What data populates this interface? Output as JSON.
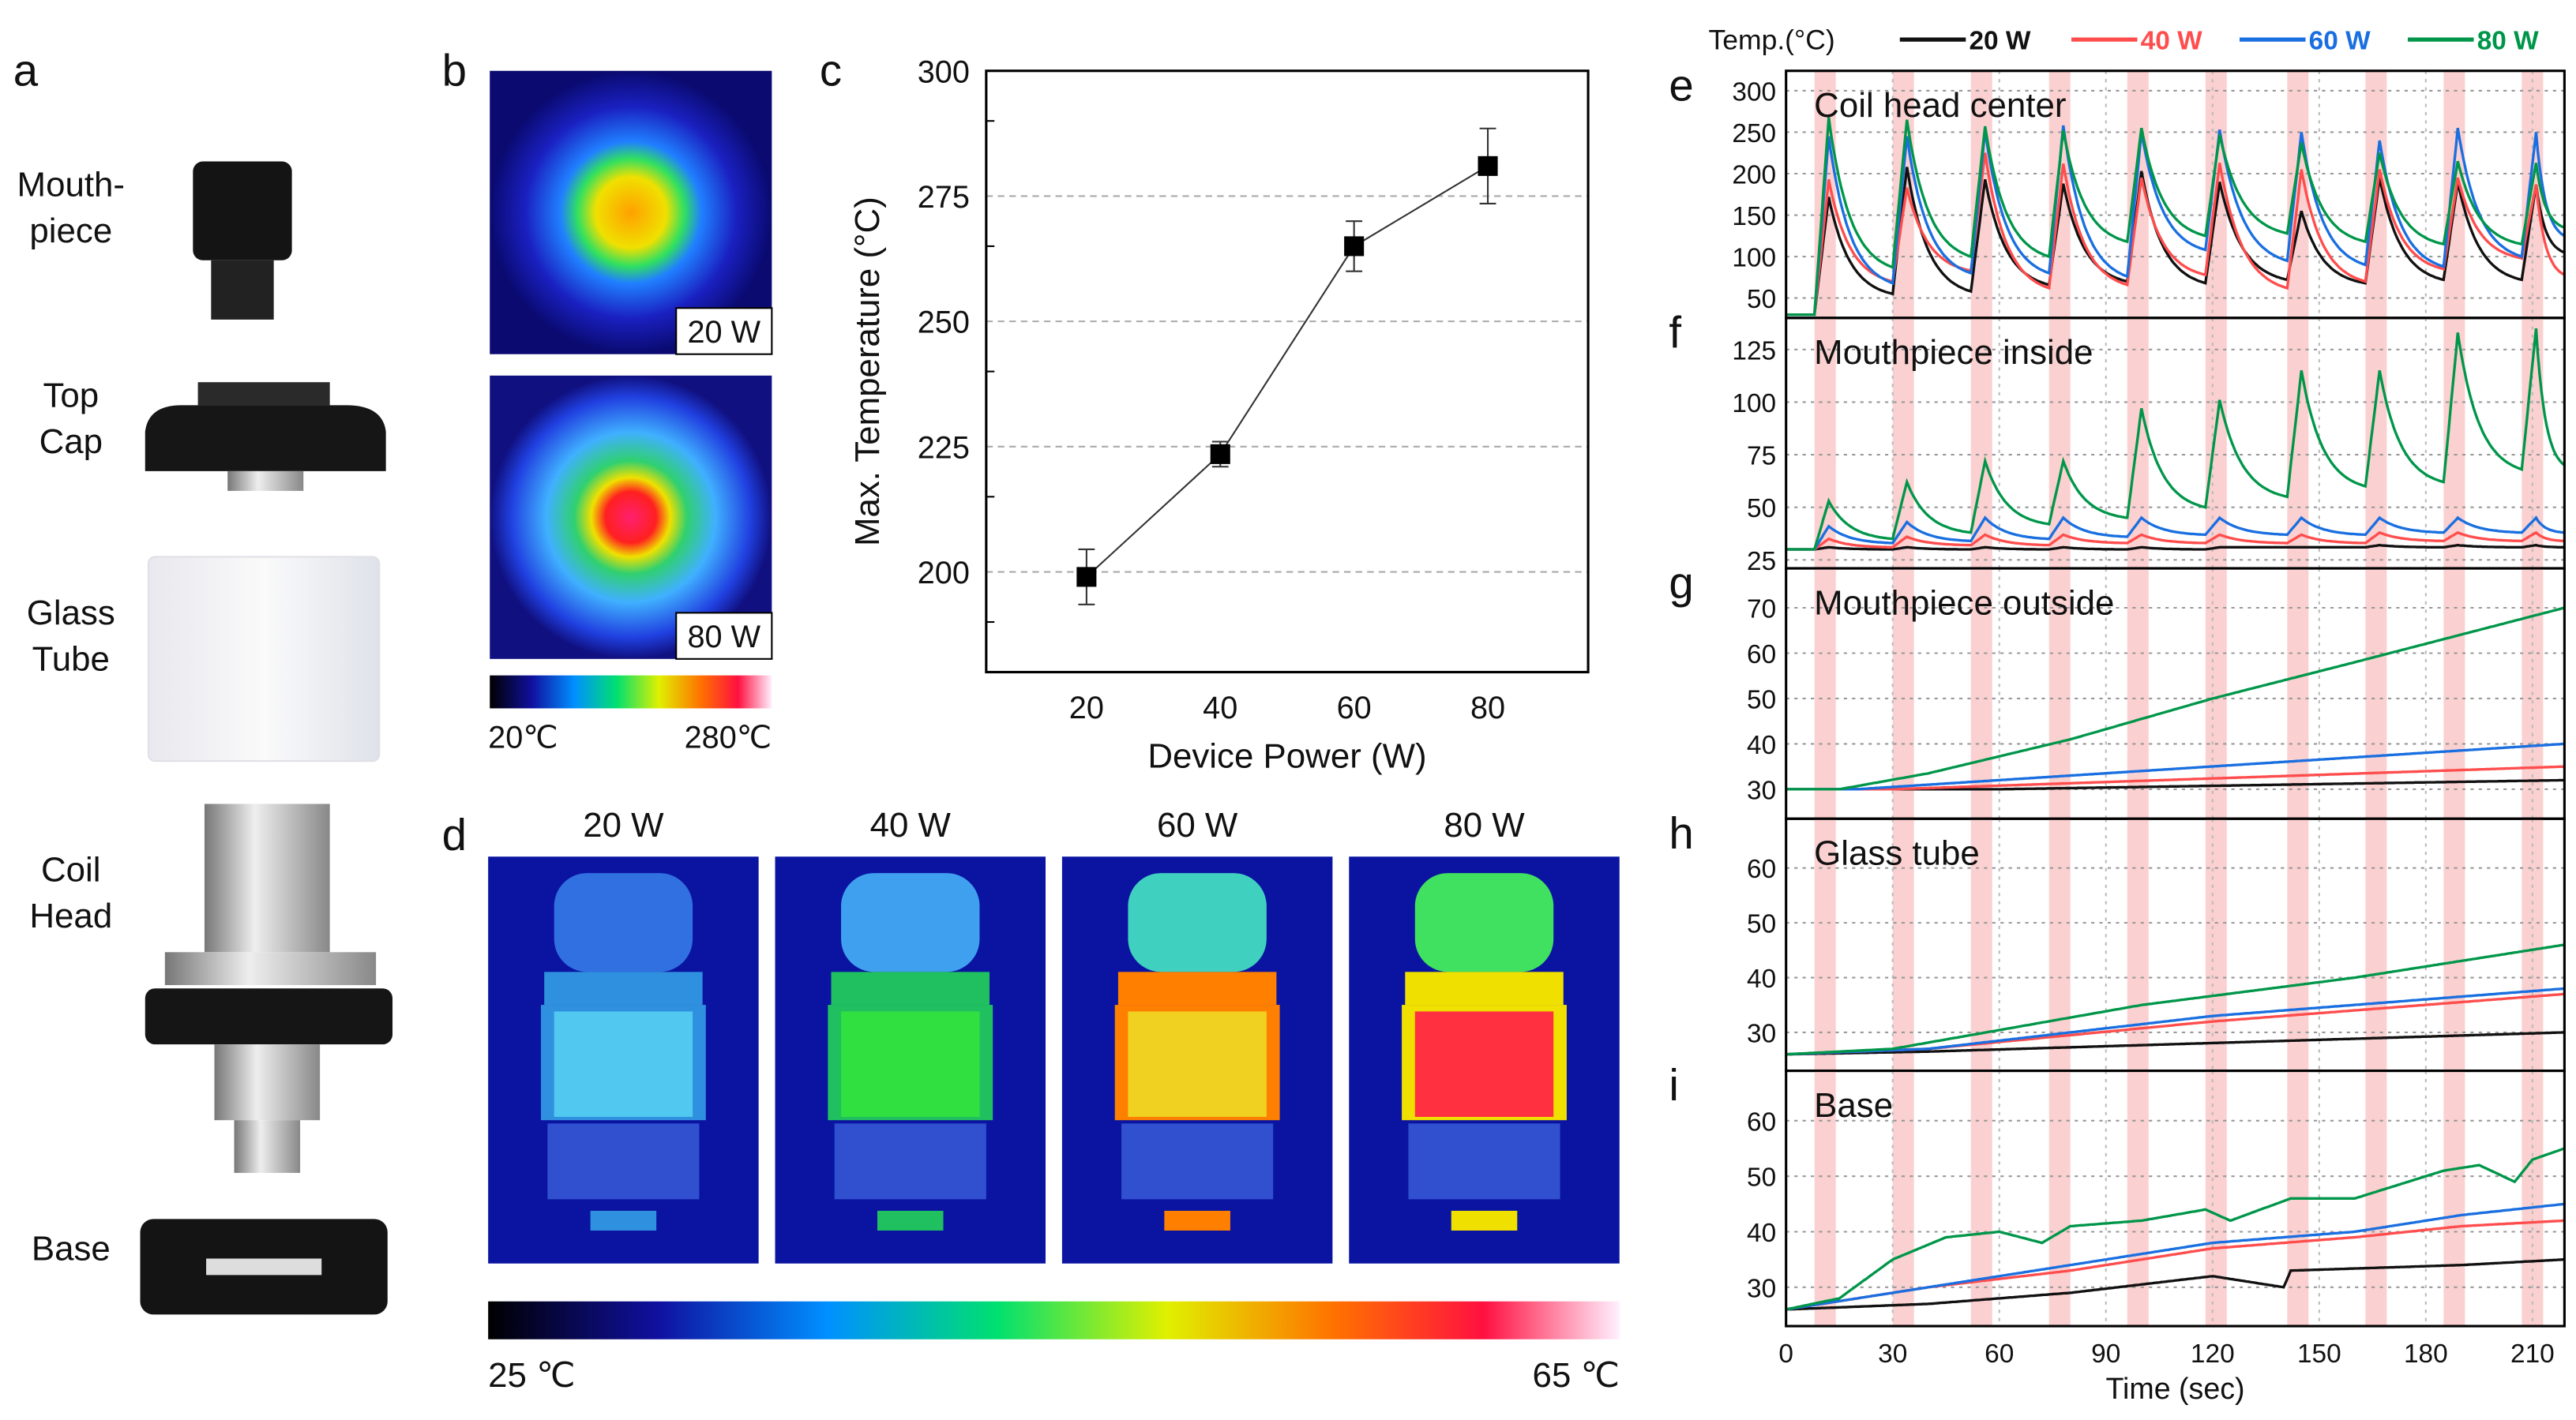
{
  "panel_labels": {
    "a": "a",
    "b": "b",
    "c": "c",
    "d": "d",
    "e": "e",
    "f": "f",
    "g": "g",
    "h": "h",
    "i": "i"
  },
  "panel_a": {
    "components": [
      {
        "lines": [
          "Mouth-",
          "piece"
        ]
      },
      {
        "lines": [
          "Top",
          "Cap"
        ]
      },
      {
        "lines": [
          "Glass",
          "Tube"
        ]
      },
      {
        "lines": [
          "Coil",
          "Head"
        ]
      },
      {
        "lines": [
          "Base"
        ]
      }
    ]
  },
  "panel_b": {
    "images": [
      {
        "label": "20 W"
      },
      {
        "label": "80 W"
      }
    ],
    "colorbar": {
      "min": "20℃",
      "max": "280℃"
    }
  },
  "panel_d": {
    "images": [
      {
        "label": "20 W"
      },
      {
        "label": "40 W"
      },
      {
        "label": "60 W"
      },
      {
        "label": "80 W"
      }
    ],
    "colorbar": {
      "min": "25 ℃",
      "max": "65 ℃"
    }
  },
  "legend": {
    "title": "Temp.(°C)",
    "series": [
      {
        "name": "20 W",
        "color": "#111111"
      },
      {
        "name": "40 W",
        "color": "#ff4d4d"
      },
      {
        "name": "60 W",
        "color": "#1a6fe0"
      },
      {
        "name": "80 W",
        "color": "#00964a"
      }
    ]
  },
  "chart_data": [
    {
      "id": "c",
      "type": "line",
      "xlabel": "Device Power (W)",
      "ylabel": "Max. Temperature (°C)",
      "x": [
        20,
        40,
        60,
        80
      ],
      "y": [
        199,
        223.5,
        265,
        281
      ],
      "error": [
        5.5,
        2.5,
        5,
        7.5
      ],
      "xlim": [
        5,
        95
      ],
      "ylim": [
        180,
        300
      ],
      "xticks": [
        20,
        40,
        60,
        80
      ],
      "yticks": [
        200,
        225,
        250,
        275,
        300
      ],
      "grid": "y-dashed"
    },
    {
      "id": "e",
      "type": "line",
      "title": "Coil head center",
      "xlim": [
        0,
        219
      ],
      "ylim": [
        26,
        324
      ],
      "yticks": [
        50,
        100,
        150,
        200,
        250,
        300
      ],
      "puff_starts": [
        8,
        30,
        52,
        74,
        96,
        118,
        141,
        163,
        185,
        207
      ],
      "puff_duration": 6,
      "baseline": 30,
      "series": [
        {
          "name": "20 W",
          "peaks": [
            172,
            208,
            193,
            188,
            203,
            190,
            155,
            195,
            190,
            187
          ],
          "troughs": [
            55,
            58,
            66,
            70,
            68,
            72,
            68,
            72,
            72,
            105
          ]
        },
        {
          "name": "40 W",
          "peaks": [
            193,
            183,
            225,
            212,
            195,
            213,
            205,
            205,
            195,
            187
          ],
          "troughs": [
            70,
            83,
            62,
            66,
            78,
            62,
            70,
            85,
            98,
            78
          ]
        },
        {
          "name": "60 W",
          "peaks": [
            245,
            245,
            252,
            258,
            250,
            253,
            250,
            240,
            255,
            250
          ],
          "troughs": [
            68,
            80,
            80,
            76,
            108,
            95,
            90,
            88,
            100,
            125
          ]
        },
        {
          "name": "80 W",
          "peaks": [
            268,
            265,
            257,
            252,
            255,
            247,
            237,
            225,
            215,
            213
          ],
          "troughs": [
            87,
            100,
            100,
            118,
            125,
            128,
            118,
            115,
            115,
            135
          ]
        }
      ]
    },
    {
      "id": "f",
      "type": "line",
      "title": "Mouthpiece inside",
      "xlim": [
        0,
        219
      ],
      "ylim": [
        21,
        140
      ],
      "yticks": [
        25,
        50,
        75,
        100,
        125
      ],
      "baseline": 30,
      "series": [
        {
          "name": "20 W",
          "peaks": [
            31,
            31,
            31,
            31,
            31,
            31,
            31,
            32,
            32,
            32
          ],
          "troughs": [
            30,
            30,
            30,
            30,
            30,
            31,
            31,
            31,
            31,
            31
          ]
        },
        {
          "name": "40 W",
          "peaks": [
            35,
            36,
            37,
            37,
            37,
            37,
            37,
            38,
            38,
            38
          ],
          "troughs": [
            31,
            32,
            32,
            33,
            33,
            33,
            33,
            34,
            34,
            34
          ]
        },
        {
          "name": "60 W",
          "peaks": [
            41,
            43,
            45,
            45,
            45,
            45,
            45,
            45,
            45,
            45
          ],
          "troughs": [
            33,
            34,
            35,
            36,
            37,
            37,
            37,
            38,
            38,
            38
          ]
        },
        {
          "name": "80 W",
          "peaks": [
            53,
            62,
            72,
            72,
            97,
            101,
            115,
            115,
            133,
            135
          ],
          "troughs": [
            35,
            38,
            42,
            45,
            50,
            55,
            60,
            62,
            68,
            70
          ]
        }
      ]
    },
    {
      "id": "g",
      "type": "line",
      "title": "Mouthpiece outside",
      "xlim": [
        0,
        219
      ],
      "ylim": [
        23.5,
        78.7
      ],
      "yticks": [
        30,
        40,
        50,
        60,
        70
      ],
      "series": [
        {
          "name": "20 W",
          "points": [
            [
              0,
              30
            ],
            [
              60,
              30
            ],
            [
              219,
              32
            ]
          ]
        },
        {
          "name": "40 W",
          "points": [
            [
              0,
              30
            ],
            [
              30,
              30
            ],
            [
              219,
              35
            ]
          ]
        },
        {
          "name": "60 W",
          "points": [
            [
              0,
              30
            ],
            [
              20,
              30
            ],
            [
              219,
              40
            ]
          ]
        },
        {
          "name": "80 W",
          "points": [
            [
              0,
              30
            ],
            [
              15,
              30
            ],
            [
              40,
              33.5
            ],
            [
              80,
              41
            ],
            [
              120,
              50
            ],
            [
              160,
              58
            ],
            [
              219,
              70
            ]
          ]
        }
      ]
    },
    {
      "id": "h",
      "type": "line",
      "title": "Glass tube",
      "xlim": [
        0,
        219
      ],
      "ylim": [
        23,
        69
      ],
      "yticks": [
        30,
        40,
        50,
        60
      ],
      "series": [
        {
          "name": "20 W",
          "points": [
            [
              0,
              26
            ],
            [
              40,
              26.5
            ],
            [
              219,
              30
            ]
          ]
        },
        {
          "name": "40 W",
          "points": [
            [
              0,
              26
            ],
            [
              40,
              27
            ],
            [
              120,
              32
            ],
            [
              219,
              37
            ]
          ]
        },
        {
          "name": "60 W",
          "points": [
            [
              0,
              26
            ],
            [
              40,
              27
            ],
            [
              120,
              33
            ],
            [
              219,
              38
            ]
          ]
        },
        {
          "name": "80 W",
          "points": [
            [
              0,
              26
            ],
            [
              30,
              27
            ],
            [
              100,
              35
            ],
            [
              160,
              40
            ],
            [
              219,
              46
            ]
          ]
        }
      ]
    },
    {
      "id": "i",
      "type": "line",
      "title": "Base",
      "xlim": [
        0,
        219
      ],
      "ylim": [
        23,
        69
      ],
      "yticks": [
        30,
        40,
        50,
        60
      ],
      "xticks": [
        0,
        30,
        60,
        90,
        120,
        150,
        180,
        210
      ],
      "xlabel": "Time (sec)",
      "series": [
        {
          "name": "20 W",
          "points": [
            [
              0,
              26
            ],
            [
              40,
              27
            ],
            [
              80,
              29
            ],
            [
              120,
              32
            ],
            [
              140,
              30
            ],
            [
              142,
              33
            ],
            [
              190,
              34
            ],
            [
              219,
              35
            ]
          ]
        },
        {
          "name": "40 W",
          "points": [
            [
              0,
              26
            ],
            [
              20,
              28
            ],
            [
              40,
              30
            ],
            [
              80,
              33
            ],
            [
              120,
              37
            ],
            [
              160,
              39
            ],
            [
              190,
              41
            ],
            [
              219,
              42
            ]
          ]
        },
        {
          "name": "60 W",
          "points": [
            [
              0,
              26
            ],
            [
              20,
              28
            ],
            [
              40,
              30
            ],
            [
              80,
              34
            ],
            [
              120,
              38
            ],
            [
              160,
              40
            ],
            [
              190,
              43
            ],
            [
              219,
              45
            ]
          ]
        },
        {
          "name": "80 W",
          "points": [
            [
              0,
              26
            ],
            [
              15,
              28
            ],
            [
              30,
              35
            ],
            [
              45,
              39
            ],
            [
              60,
              40
            ],
            [
              72,
              38
            ],
            [
              80,
              41
            ],
            [
              100,
              42
            ],
            [
              118,
              44
            ],
            [
              125,
              42
            ],
            [
              142,
              46
            ],
            [
              160,
              46
            ],
            [
              170,
              48
            ],
            [
              185,
              51
            ],
            [
              195,
              52
            ],
            [
              205,
              49
            ],
            [
              210,
              53
            ],
            [
              219,
              55
            ]
          ]
        }
      ]
    }
  ]
}
